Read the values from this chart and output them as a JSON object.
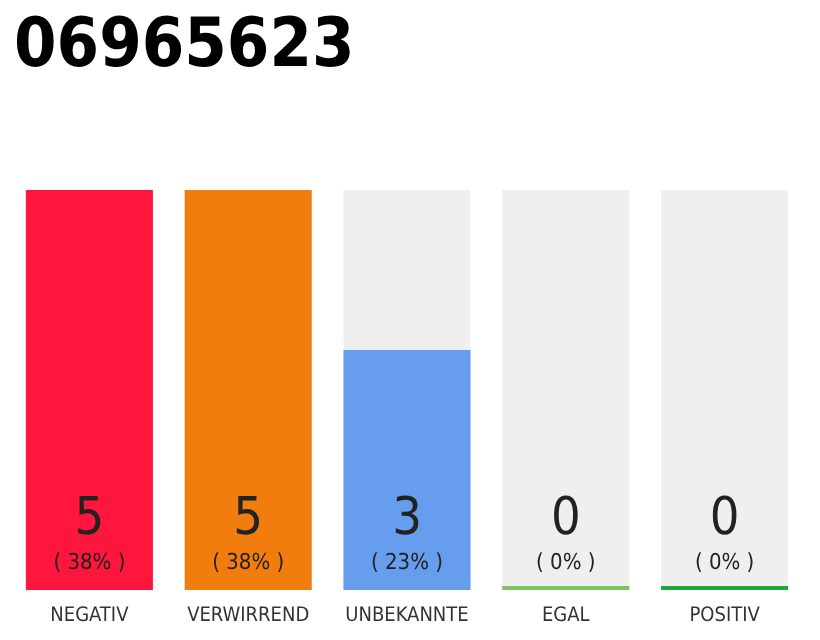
{
  "chart_data": {
    "type": "bar",
    "title": "06965623",
    "categories": [
      "NEGATIV",
      "VERWIRREND",
      "UNBEKANNTE",
      "EGAL",
      "POSITIV"
    ],
    "values": [
      5,
      5,
      3,
      0,
      0
    ],
    "colors": [
      "#ff163c",
      "#f07d0d",
      "#679ded",
      "#7dc35a",
      "#1fa53a"
    ],
    "value_labels": [
      "5\n( 38% )",
      "5\n( 38% )",
      "3\n( 23% )",
      "0\n( 0% )",
      "0\n( 0% )"
    ],
    "ylim": [
      0,
      5
    ],
    "tick_labels": "x",
    "grid": false
  }
}
